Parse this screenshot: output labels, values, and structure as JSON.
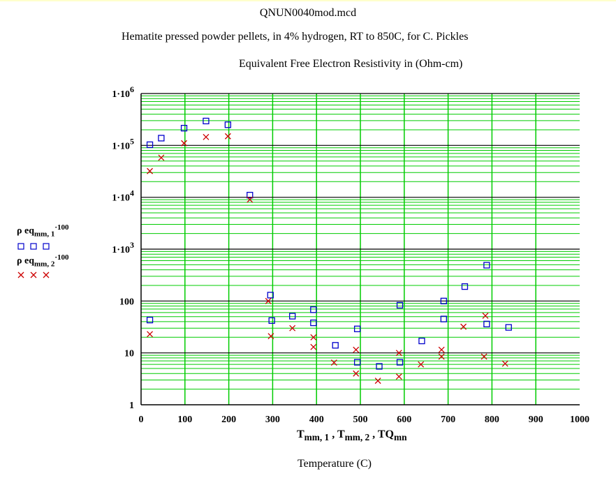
{
  "file_title": "QNUN0040mod.mcd",
  "subtitle": "Hematite pressed powder pellets, in 4% hydrogen,  RT to 850C,  for C. Pickles",
  "chart_title": "Equivalent Free Electron Resistivity in (Ohm-cm)",
  "y_legend": [
    {
      "base": "ρ eq",
      "sub": "mm, 1",
      "sup": "·100",
      "marker": "square",
      "color": "#0000cc"
    },
    {
      "base": "ρ eq",
      "sub": "mm, 2",
      "sup": "·100",
      "marker": "cross",
      "color": "#cc0000"
    }
  ],
  "x_legend": {
    "parts": [
      {
        "base": "T",
        "sub": "mm, 1"
      },
      {
        "base": "T",
        "sub": "mm, 2"
      },
      {
        "base": "TQ",
        "sub": "mn"
      }
    ]
  },
  "colors": {
    "grid_major": "#000000",
    "grid_minor": "#00cc00",
    "square": "#0000cc",
    "cross": "#cc0000",
    "top_bar": "#ffffcc"
  },
  "chart_data": {
    "type": "scatter",
    "title": "Equivalent Free Electron Resistivity in (Ohm-cm)",
    "xlabel": "Temperature (C)",
    "ylabel": "",
    "xlim": [
      0,
      1000
    ],
    "ylim": [
      1,
      1000000
    ],
    "yscale": "log",
    "grid": true,
    "x_ticks": [
      "0",
      "100",
      "200",
      "300",
      "400",
      "500",
      "600",
      "700",
      "800",
      "900",
      "1000"
    ],
    "y_ticks": [
      {
        "value": 1,
        "mantissa": "1",
        "exp": ""
      },
      {
        "value": 10,
        "mantissa": "10",
        "exp": ""
      },
      {
        "value": 100,
        "mantissa": "100",
        "exp": ""
      },
      {
        "value": 1000,
        "mantissa": "1·10",
        "exp": "3"
      },
      {
        "value": 10000,
        "mantissa": "1·10",
        "exp": "4"
      },
      {
        "value": 100000,
        "mantissa": "1·10",
        "exp": "5"
      },
      {
        "value": 1000000,
        "mantissa": "1·10",
        "exp": "6"
      }
    ],
    "series": [
      {
        "marker": "square",
        "color": "#0000cc",
        "points": [
          [
            20,
            103000
          ],
          [
            46,
            138000
          ],
          [
            98,
            215000
          ],
          [
            148,
            295000
          ],
          [
            198,
            250000
          ],
          [
            248,
            11000
          ],
          [
            295,
            130
          ],
          [
            298,
            42
          ],
          [
            345,
            51
          ],
          [
            393,
            68
          ],
          [
            393,
            38
          ],
          [
            443,
            14
          ],
          [
            493,
            29
          ],
          [
            493,
            6.6
          ],
          [
            543,
            5.5
          ],
          [
            590,
            83
          ],
          [
            590,
            6.6
          ],
          [
            640,
            17
          ],
          [
            690,
            100
          ],
          [
            690,
            45
          ],
          [
            738,
            190
          ],
          [
            788,
            490
          ],
          [
            788,
            36
          ],
          [
            838,
            31
          ],
          [
            20,
            43
          ]
        ]
      },
      {
        "marker": "cross",
        "color": "#cc0000",
        "points": [
          [
            20,
            32000
          ],
          [
            46,
            58000
          ],
          [
            98,
            110000
          ],
          [
            148,
            145000
          ],
          [
            198,
            150000
          ],
          [
            248,
            9000
          ],
          [
            290,
            100
          ],
          [
            296,
            21
          ],
          [
            345,
            30
          ],
          [
            393,
            20
          ],
          [
            393,
            13
          ],
          [
            440,
            6.5
          ],
          [
            490,
            11.5
          ],
          [
            490,
            4
          ],
          [
            540,
            2.9
          ],
          [
            588,
            10
          ],
          [
            588,
            3.5
          ],
          [
            638,
            6
          ],
          [
            685,
            11.5
          ],
          [
            685,
            8.5
          ],
          [
            735,
            32
          ],
          [
            785,
            52
          ],
          [
            782,
            8.5
          ],
          [
            830,
            6.2
          ],
          [
            20,
            23
          ]
        ]
      }
    ]
  },
  "x_label": "Temperature (C)"
}
